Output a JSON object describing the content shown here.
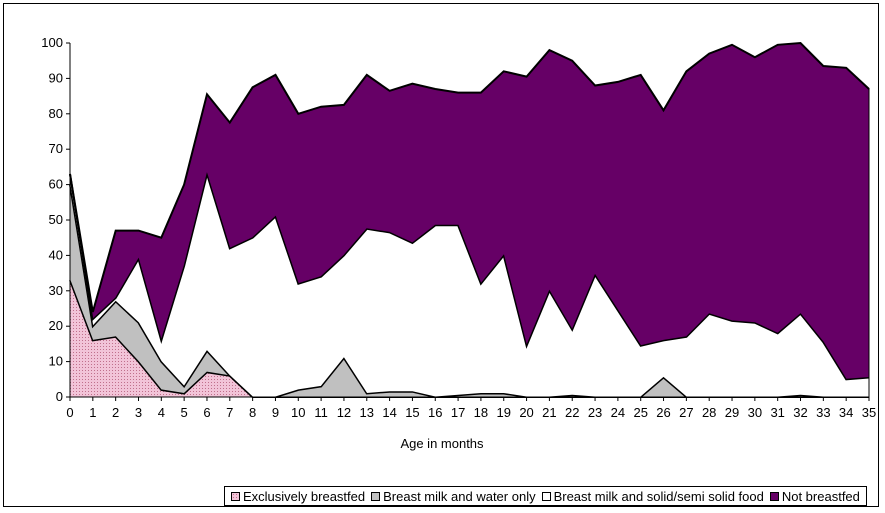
{
  "chart_data": {
    "type": "area",
    "stacked": true,
    "title": "",
    "xlabel": "Age in months",
    "ylabel": "",
    "ylim": [
      0,
      100
    ],
    "yticks": [
      0,
      10,
      20,
      30,
      40,
      50,
      60,
      70,
      80,
      90,
      100
    ],
    "x": [
      0,
      1,
      2,
      3,
      4,
      5,
      6,
      7,
      8,
      9,
      10,
      11,
      12,
      13,
      14,
      15,
      16,
      17,
      18,
      19,
      20,
      21,
      22,
      23,
      24,
      25,
      26,
      27,
      28,
      29,
      30,
      31,
      32,
      33,
      34,
      35
    ],
    "grid": false,
    "legend_position": "bottom",
    "series": [
      {
        "name": "Exclusively breastfed",
        "color": "#f2c4d8",
        "pattern": "dotted",
        "values": [
          33,
          16,
          17,
          10,
          2,
          1,
          7,
          6,
          0,
          0,
          0,
          0,
          0,
          0,
          0,
          0,
          0,
          0,
          0,
          0,
          0,
          0,
          0,
          0,
          0,
          0,
          0,
          0,
          0,
          0,
          0,
          0,
          0,
          0,
          0,
          0
        ]
      },
      {
        "name": "Breast milk and water only",
        "color": "#c0c0c0",
        "values": [
          27,
          4,
          10,
          11,
          8,
          2,
          6,
          0,
          0,
          0,
          2,
          3,
          11,
          1,
          1.5,
          1.5,
          0,
          0.5,
          1,
          1,
          0,
          0,
          0.5,
          0,
          0,
          0,
          5.5,
          0,
          0,
          0,
          0,
          0,
          0.5,
          0,
          0,
          0
        ]
      },
      {
        "name": "Breast milk and solid/semi solid food",
        "color": "#ffffff",
        "values": [
          3,
          2,
          1,
          18,
          6,
          34,
          50,
          36,
          45,
          51,
          30,
          31,
          29,
          46.5,
          45,
          42,
          48.5,
          48,
          31,
          39,
          14.5,
          30,
          18.5,
          34.5,
          24.5,
          14.5,
          10.5,
          17,
          23.5,
          21.5,
          21,
          18,
          23,
          15.5,
          5,
          5.5
        ]
      },
      {
        "name": "Not breastfed",
        "color": "#660066",
        "values": [
          0,
          2,
          19,
          8,
          29,
          23,
          22.5,
          35.5,
          42.5,
          40,
          48,
          48,
          42.5,
          43.5,
          40,
          45,
          38.5,
          37.5,
          54,
          52,
          76,
          68,
          76,
          53.5,
          64.5,
          76.5,
          65,
          75,
          73.5,
          78,
          75,
          81.5,
          76.5,
          78,
          88,
          81.5
        ]
      }
    ]
  }
}
